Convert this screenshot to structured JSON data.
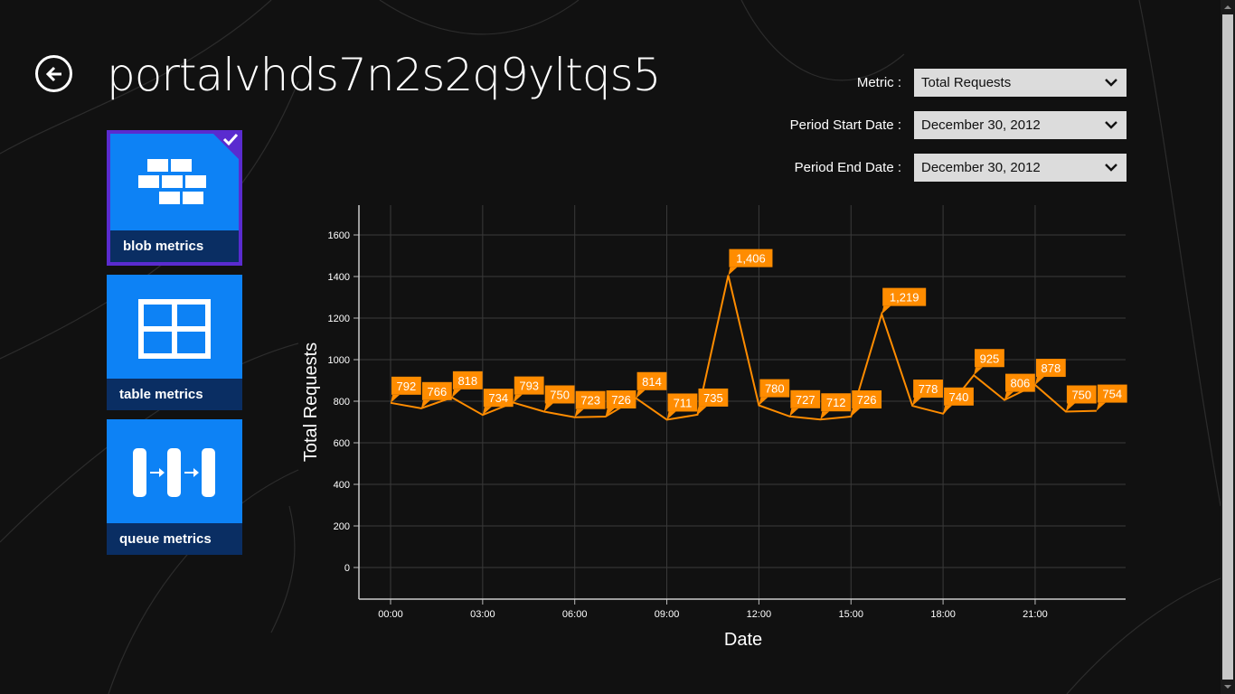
{
  "header": {
    "title": "portalvhds7n2s2q9yltqs5"
  },
  "tiles": [
    {
      "label": "blob metrics",
      "icon": "bricks-icon",
      "selected": true
    },
    {
      "label": "table metrics",
      "icon": "grid-icon",
      "selected": false
    },
    {
      "label": "queue metrics",
      "icon": "queue-icon",
      "selected": false
    }
  ],
  "filters": {
    "metric": {
      "label": "Metric :",
      "value": "Total Requests"
    },
    "start": {
      "label": "Period Start Date :",
      "value": "December 30, 2012"
    },
    "end": {
      "label": "Period End Date :",
      "value": "December 30, 2012"
    }
  },
  "colors": {
    "accent": "#ff8c00",
    "tile": "#0d82f5",
    "tile_label": "#0a2e63",
    "selected": "#5a2bcf"
  },
  "chart_data": {
    "type": "line",
    "xlabel": "Date",
    "ylabel": "Total Requests",
    "ylim": [
      0,
      1600
    ],
    "ytick_labels": [
      "0",
      "200",
      "400",
      "600",
      "800",
      "1000",
      "1200",
      "1400",
      "1600"
    ],
    "xtick_labels": [
      "00:00",
      "03:00",
      "06:00",
      "09:00",
      "12:00",
      "15:00",
      "18:00",
      "21:00"
    ],
    "xtick_hours": [
      0,
      3,
      6,
      9,
      12,
      15,
      18,
      21
    ],
    "grid": true,
    "series": [
      {
        "x": [
          0,
          1,
          2,
          3,
          4,
          5,
          6,
          7,
          8,
          9,
          10,
          11,
          12,
          13,
          14,
          15,
          16,
          17,
          18,
          19,
          20,
          21,
          22,
          23
        ],
        "values": [
          792,
          766,
          818,
          734,
          793,
          750,
          723,
          726,
          814,
          711,
          735,
          1406,
          780,
          727,
          712,
          726,
          1219,
          778,
          740,
          925,
          806,
          878,
          750,
          754
        ],
        "data_labels": [
          "792",
          "766",
          "818",
          "734",
          "793",
          "750",
          "723",
          "726",
          "814",
          "711",
          "735",
          "1,406",
          "780",
          "727",
          "712",
          "726",
          "1,219",
          "778",
          "740",
          "925",
          "806",
          "878",
          "750",
          "754"
        ]
      }
    ]
  }
}
